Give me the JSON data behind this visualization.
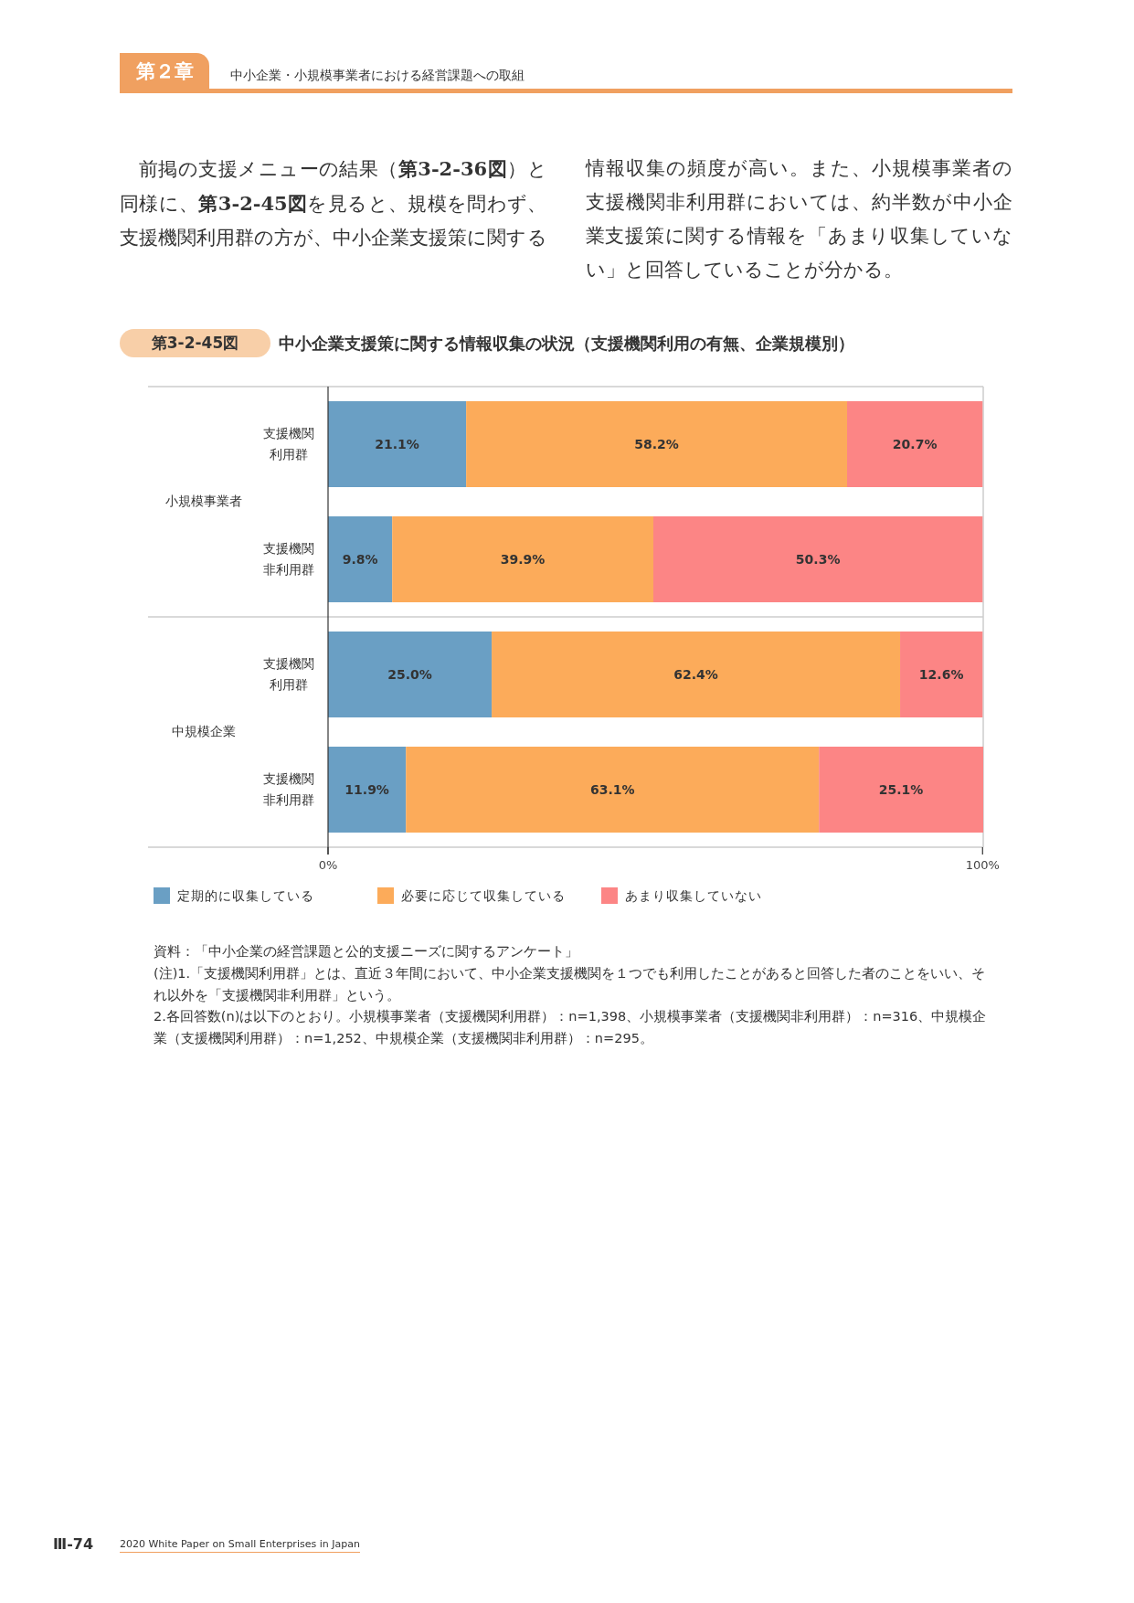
{
  "chart_data": {
    "type": "bar",
    "orientation": "horizontal",
    "stacked": true,
    "title": "中小企業支援策に関する情報収集の状況（支援機関利用の有無、企業規模別）",
    "subtitle": "第3-2-45図",
    "categories": [
      "支援機関利用群",
      "支援機関非利用群",
      "支援機関利用群",
      "支援機関非利用群"
    ],
    "series": [
      {
        "name": "定期的に収集している",
        "color": "#6a9fc4",
        "values": [
          21.1,
          9.8,
          25.0,
          11.9
        ],
        "value_labels": [
          "21.1%",
          "9.8%",
          "25.0%",
          "11.9%"
        ]
      },
      {
        "name": "必要に応じて収集している",
        "color": "#fcab5a",
        "values": [
          58.2,
          39.9,
          62.4,
          63.1
        ],
        "value_labels": [
          "58.2%",
          "39.9%",
          "62.4%",
          "63.1%"
        ]
      },
      {
        "name": "あまり収集していない",
        "color": "#fc8585",
        "values": [
          20.7,
          50.3,
          12.6,
          25.1
        ],
        "value_labels": [
          "20.7%",
          "50.3%",
          "12.6%",
          "25.1%"
        ]
      }
    ],
    "xlim": [
      0,
      100.1
    ],
    "xticks": [
      {
        "value": 0,
        "label": "0%"
      },
      {
        "value": 100,
        "label": "100%"
      }
    ],
    "legend": "bottom",
    "annotations": [
      "第２章",
      "中小企業・小規模事業者における経営課題への取組",
      "前掲の支援メニューの結果（**第3-2-36図**）と同様に、**第3-2-45図**を見ると、規模を問わず、支援機関利用群の方が、中小企業支援策に関する情報収集の頻度が高い。また、小規模事業者の支援機関非利用群においては、約半数が中小企業支援策に関する情報を「あまり収集していない」と回答していることが分かる。",
      "小規模事業者",
      "中規模企業",
      "資料：「中小企業の経営課題と公的支援ニーズに関するアンケート」",
      "(注)1.「支援機関利用群」とは、直近３年間において、中小企業支援機関を１つでも利用したことがあると回答した者のことをいい、それ以外を「支援機関非利用群」という。",
      "2.各回答数(n)は以下のとおり。小規模事業者（支援機関利用群）：n=1,398、小規模事業者（支援機関非利用群）：n=316、中規模企業（支援機関利用群）：n=1,252、中規模企業（支援機関非利用群）：n=295。",
      "Ⅲ-74",
      "2020 White Paper on Small Enterprises in Japan"
    ]
  }
}
